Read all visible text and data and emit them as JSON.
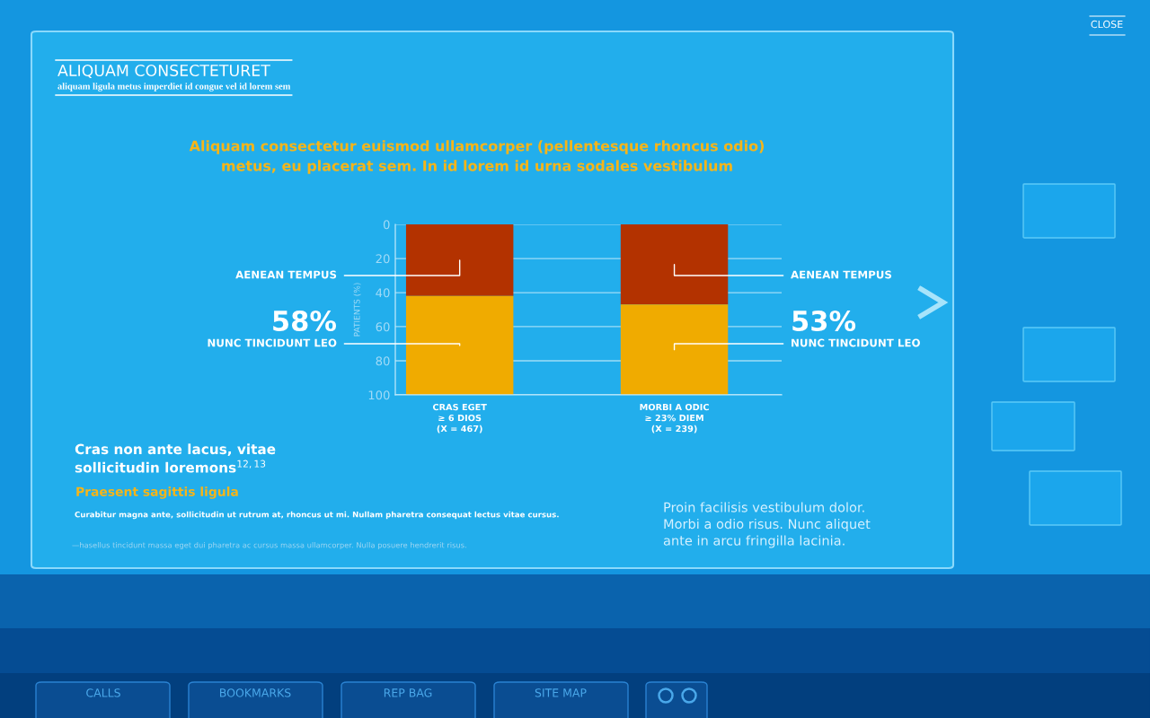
{
  "chart_data": {
    "type": "bar",
    "title": "ALIQUAM CONSECTETURET",
    "subtitle": "aliquam ligula metus imperdiet id congue vel id lorem sem",
    "ylabel": "PATIENTS (%)",
    "categories": [
      "CRAS EGET\n≥ 6 DIOS\n(X = 467)",
      "MORBI A ODIC\n≥ 23% DIEM\n(X = 239)"
    ],
    "stacked": true,
    "series": [
      {
        "name": "AENEAN TEMPUS",
        "color": "#b33200",
        "values": [
          42,
          47
        ]
      },
      {
        "name": "NUNC TINCIDUNT LEO",
        "color": "#f0ab00",
        "values": [
          58,
          53
        ],
        "value_labels": [
          "58%",
          "53%"
        ]
      }
    ],
    "ylim": [
      100,
      0
    ],
    "yticks": [
      0,
      20,
      40,
      60,
      80,
      100
    ],
    "grid": "y",
    "annotations": [
      "Aliquam consectetur euismod ullamcorper (pellentesque rhoncus odio)\nmetus, eu placerat sem. In id lorem id urna sodales vestibulum",
      "Cras non ante lacus, vitae\nsollicitudin loremons$^{12,13}$",
      "Praesent sagittis ligula",
      "Curabitur magna ante, sollicitudin ut rutrum at, rhoncus ut mi. Nullam pharetra consequat lectus vitae cursus.",
      "—hasellus tincidunt massa eget dui pharetra ac cursus massa ullamcorper. Nulla posuere hendrerit risus.",
      "Proin facilisis vestibulum dolor.\nMorbi a odio risus. Nunc aliquet\nante in arcu fringilla lacinia.",
      "CLOSE",
      "CALLS",
      "BOOKMARKS",
      "REP BAG",
      "SITE MAP"
    ]
  }
}
